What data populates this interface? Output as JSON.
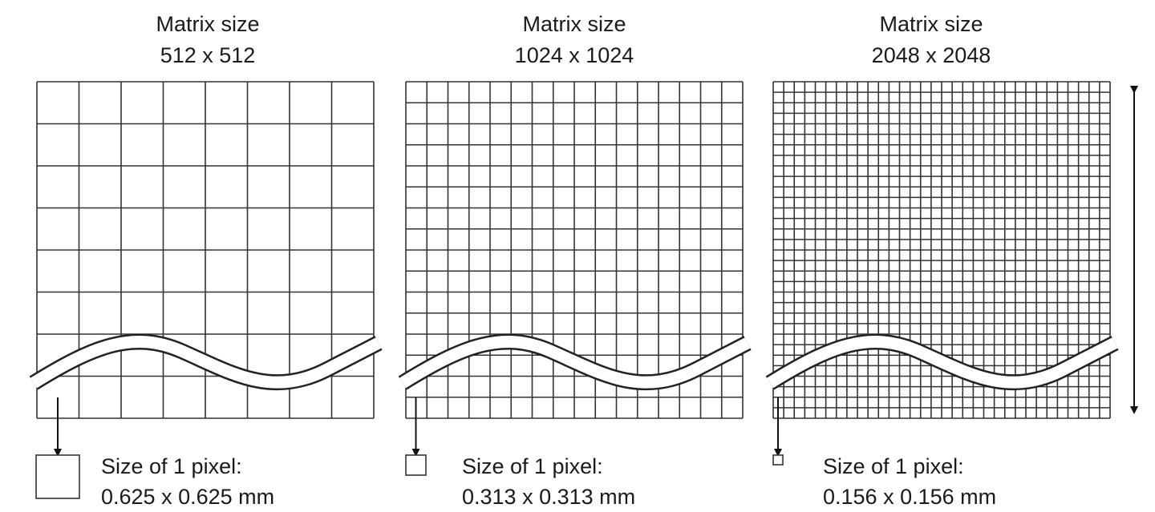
{
  "panels": [
    {
      "title": "Matrix size",
      "matrix": "512 x 512",
      "pixel_label": "Size of 1 pixel:",
      "pixel_size": "0.625 x 0.625 mm"
    },
    {
      "title": "Matrix size",
      "matrix": "1024 x 1024",
      "pixel_label": "Size of 1 pixel:",
      "pixel_size": "0.313 x 0.313 mm"
    },
    {
      "title": "Matrix size",
      "matrix": "2048 x 2048",
      "pixel_label": "Size of 1 pixel:",
      "pixel_size": "0.156 x 0.156 mm"
    }
  ]
}
